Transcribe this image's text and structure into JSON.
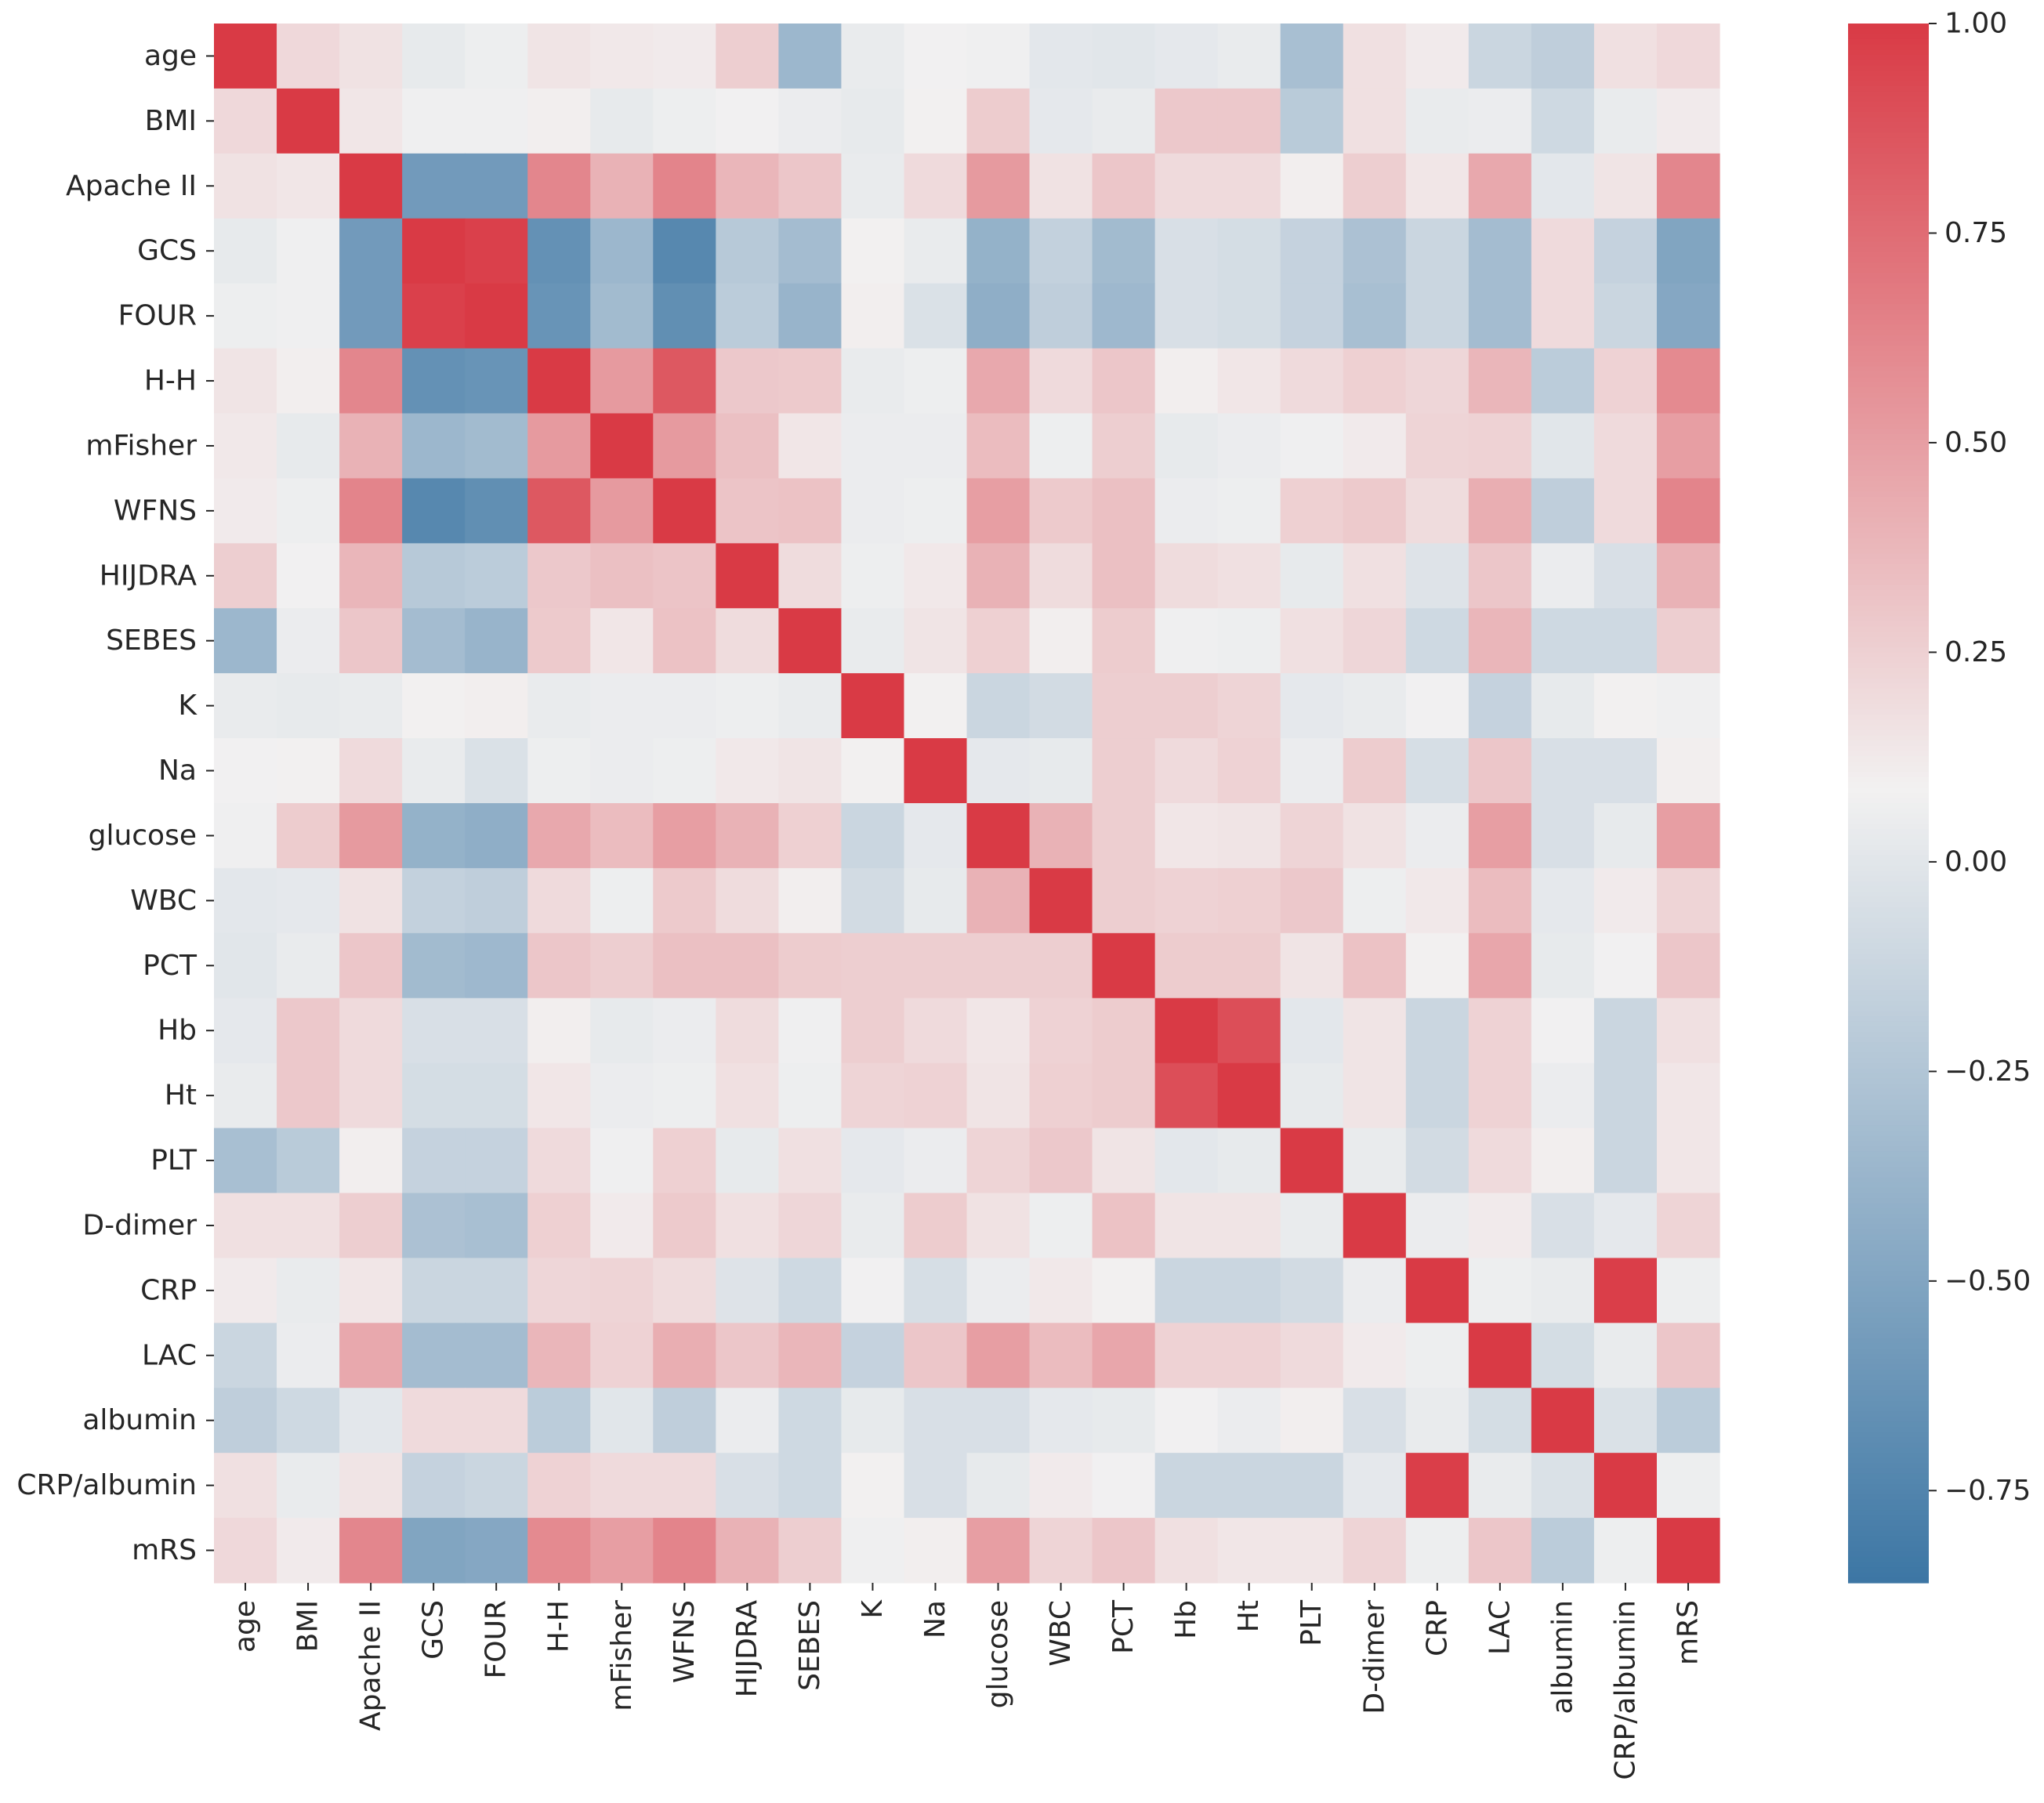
{
  "chart_data": {
    "type": "heatmap",
    "title": "",
    "xlabel": "",
    "ylabel": "",
    "labels": [
      "age",
      "BMI",
      "Apache II",
      "GCS",
      "FOUR",
      "H-H",
      "mFisher",
      "WFNS",
      "HIJDRA",
      "SEBES",
      "K",
      "Na",
      "glucose",
      "WBC",
      "PCT",
      "Hb",
      "Ht",
      "PLT",
      "D-dimer",
      "CRP",
      "LAC",
      "albumin",
      "CRP/albumin",
      "mRS"
    ],
    "matrix": [
      [
        1.0,
        0.21,
        0.16,
        0.03,
        0.06,
        0.15,
        0.13,
        0.12,
        0.26,
        -0.36,
        0.04,
        0.08,
        0.07,
        0.01,
        0.0,
        0.02,
        0.04,
        -0.3,
        0.17,
        0.12,
        -0.12,
        -0.18,
        0.17,
        0.21
      ],
      [
        0.21,
        1.0,
        0.14,
        0.07,
        0.07,
        0.1,
        0.03,
        0.06,
        0.08,
        0.05,
        0.03,
        0.09,
        0.27,
        0.02,
        0.04,
        0.29,
        0.29,
        -0.21,
        0.17,
        0.04,
        0.05,
        -0.1,
        0.04,
        0.12
      ],
      [
        0.16,
        0.14,
        1.0,
        -0.58,
        -0.58,
        0.62,
        0.4,
        0.63,
        0.38,
        0.3,
        0.04,
        0.2,
        0.52,
        0.16,
        0.3,
        0.2,
        0.2,
        0.1,
        0.26,
        0.14,
        0.45,
        0.01,
        0.15,
        0.62
      ],
      [
        0.03,
        0.07,
        -0.58,
        1.0,
        0.97,
        -0.65,
        -0.36,
        -0.72,
        -0.22,
        -0.32,
        0.09,
        0.04,
        -0.4,
        -0.16,
        -0.33,
        -0.05,
        -0.07,
        -0.15,
        -0.28,
        -0.12,
        -0.32,
        0.2,
        -0.15,
        -0.5
      ],
      [
        0.06,
        0.07,
        -0.58,
        0.97,
        1.0,
        -0.63,
        -0.33,
        -0.67,
        -0.2,
        -0.38,
        0.1,
        -0.04,
        -0.43,
        -0.18,
        -0.35,
        -0.05,
        -0.07,
        -0.15,
        -0.3,
        -0.12,
        -0.32,
        0.2,
        -0.12,
        -0.48
      ],
      [
        0.15,
        0.1,
        0.62,
        -0.65,
        -0.63,
        1.0,
        0.52,
        0.85,
        0.29,
        0.28,
        0.04,
        0.06,
        0.45,
        0.2,
        0.3,
        0.1,
        0.14,
        0.2,
        0.25,
        0.22,
        0.38,
        -0.2,
        0.24,
        0.6
      ],
      [
        0.13,
        0.03,
        0.4,
        -0.36,
        -0.33,
        0.52,
        1.0,
        0.52,
        0.33,
        0.14,
        0.05,
        0.05,
        0.35,
        0.06,
        0.26,
        0.03,
        0.05,
        0.07,
        0.12,
        0.23,
        0.24,
        0.0,
        0.2,
        0.5
      ],
      [
        0.12,
        0.06,
        0.63,
        -0.72,
        -0.67,
        0.85,
        0.52,
        1.0,
        0.31,
        0.32,
        0.05,
        0.06,
        0.5,
        0.28,
        0.33,
        0.05,
        0.06,
        0.25,
        0.28,
        0.19,
        0.42,
        -0.18,
        0.2,
        0.63
      ],
      [
        0.26,
        0.08,
        0.38,
        -0.22,
        -0.2,
        0.29,
        0.33,
        0.31,
        1.0,
        0.19,
        0.06,
        0.13,
        0.4,
        0.19,
        0.33,
        0.19,
        0.17,
        0.03,
        0.17,
        -0.02,
        0.3,
        0.05,
        -0.05,
        0.4
      ],
      [
        -0.36,
        0.05,
        0.3,
        -0.32,
        -0.38,
        0.28,
        0.14,
        0.32,
        0.19,
        1.0,
        0.04,
        0.15,
        0.25,
        0.1,
        0.27,
        0.07,
        0.06,
        0.17,
        0.22,
        -0.1,
        0.38,
        -0.1,
        -0.1,
        0.26
      ],
      [
        0.04,
        0.03,
        0.04,
        0.09,
        0.1,
        0.04,
        0.05,
        0.05,
        0.06,
        0.04,
        1.0,
        0.09,
        -0.12,
        -0.08,
        0.26,
        0.26,
        0.23,
        0.02,
        0.04,
        0.08,
        -0.15,
        0.03,
        0.09,
        0.07
      ],
      [
        0.08,
        0.09,
        0.2,
        0.04,
        -0.04,
        0.06,
        0.05,
        0.06,
        0.13,
        0.15,
        0.09,
        1.0,
        0.02,
        0.03,
        0.26,
        0.2,
        0.24,
        0.05,
        0.27,
        -0.06,
        0.3,
        -0.05,
        -0.05,
        0.1
      ],
      [
        0.07,
        0.27,
        0.52,
        -0.4,
        -0.43,
        0.45,
        0.35,
        0.5,
        0.4,
        0.25,
        -0.12,
        0.02,
        1.0,
        0.4,
        0.26,
        0.14,
        0.15,
        0.23,
        0.16,
        0.05,
        0.5,
        -0.05,
        0.03,
        0.5
      ],
      [
        0.01,
        0.02,
        0.16,
        -0.16,
        -0.18,
        0.2,
        0.06,
        0.28,
        0.19,
        0.1,
        -0.08,
        0.03,
        0.4,
        1.0,
        0.26,
        0.24,
        0.25,
        0.29,
        0.06,
        0.13,
        0.35,
        0.02,
        0.12,
        0.23
      ],
      [
        0.0,
        0.04,
        0.3,
        -0.33,
        -0.35,
        0.3,
        0.26,
        0.33,
        0.33,
        0.27,
        0.26,
        0.26,
        0.26,
        0.26,
        1.0,
        0.27,
        0.27,
        0.15,
        0.32,
        0.09,
        0.46,
        0.03,
        0.08,
        0.3
      ],
      [
        0.02,
        0.29,
        0.2,
        -0.05,
        -0.05,
        0.1,
        0.03,
        0.05,
        0.19,
        0.07,
        0.26,
        0.2,
        0.14,
        0.24,
        0.27,
        1.0,
        0.9,
        0.01,
        0.15,
        -0.12,
        0.24,
        0.08,
        -0.12,
        0.17
      ],
      [
        0.04,
        0.29,
        0.2,
        -0.07,
        -0.07,
        0.14,
        0.05,
        0.06,
        0.17,
        0.06,
        0.23,
        0.24,
        0.15,
        0.25,
        0.27,
        0.9,
        1.0,
        0.03,
        0.15,
        -0.12,
        0.24,
        0.05,
        -0.12,
        0.14
      ],
      [
        -0.3,
        -0.21,
        0.1,
        -0.15,
        -0.15,
        0.2,
        0.07,
        0.25,
        0.03,
        0.17,
        0.02,
        0.05,
        0.23,
        0.29,
        0.15,
        0.01,
        0.03,
        1.0,
        0.04,
        -0.08,
        0.2,
        0.1,
        -0.12,
        0.14
      ],
      [
        0.17,
        0.17,
        0.26,
        -0.28,
        -0.3,
        0.25,
        0.12,
        0.28,
        0.17,
        0.22,
        0.04,
        0.27,
        0.16,
        0.06,
        0.32,
        0.15,
        0.15,
        0.04,
        1.0,
        0.05,
        0.12,
        -0.05,
        0.02,
        0.23
      ],
      [
        0.12,
        0.04,
        0.14,
        -0.12,
        -0.12,
        0.22,
        0.23,
        0.19,
        -0.02,
        -0.1,
        0.08,
        -0.06,
        0.05,
        0.13,
        0.09,
        -0.12,
        -0.12,
        -0.08,
        0.05,
        1.0,
        0.06,
        0.04,
        0.98,
        0.06
      ],
      [
        -0.12,
        0.05,
        0.45,
        -0.32,
        -0.32,
        0.38,
        0.24,
        0.42,
        0.3,
        0.38,
        -0.15,
        0.3,
        0.5,
        0.35,
        0.46,
        0.24,
        0.24,
        0.2,
        0.12,
        0.06,
        1.0,
        -0.07,
        0.04,
        0.3
      ],
      [
        -0.18,
        -0.1,
        0.01,
        0.2,
        0.2,
        -0.2,
        0.0,
        -0.18,
        0.05,
        -0.1,
        0.03,
        -0.05,
        -0.05,
        0.02,
        0.03,
        0.08,
        0.05,
        0.1,
        -0.05,
        0.04,
        -0.07,
        1.0,
        -0.04,
        -0.2
      ],
      [
        0.17,
        0.04,
        0.15,
        -0.15,
        -0.12,
        0.24,
        0.2,
        0.2,
        -0.05,
        -0.1,
        0.09,
        -0.05,
        0.03,
        0.12,
        0.08,
        -0.12,
        -0.12,
        -0.12,
        0.02,
        0.98,
        0.04,
        -0.04,
        1.0,
        0.06
      ],
      [
        0.21,
        0.12,
        0.62,
        -0.5,
        -0.48,
        0.6,
        0.5,
        0.63,
        0.4,
        0.26,
        0.07,
        0.1,
        0.5,
        0.23,
        0.3,
        0.17,
        0.14,
        0.14,
        0.23,
        0.06,
        0.3,
        -0.2,
        0.06,
        1.0
      ]
    ],
    "colorbar": {
      "vmin": -0.86,
      "vmax": 1.0,
      "ticks": [
        1.0,
        0.75,
        0.5,
        0.25,
        0.0,
        -0.25,
        -0.5,
        -0.75
      ],
      "tick_labels": [
        "1.00",
        "0.75",
        "0.50",
        "0.25",
        "0.00",
        "−0.25",
        "−0.50",
        "−0.75"
      ]
    },
    "colors": {
      "low": "#3c76a4",
      "mid": "#f2f1f1",
      "high": "#d93a45",
      "tick_text": "#262626",
      "tick_line": "#262626"
    }
  }
}
